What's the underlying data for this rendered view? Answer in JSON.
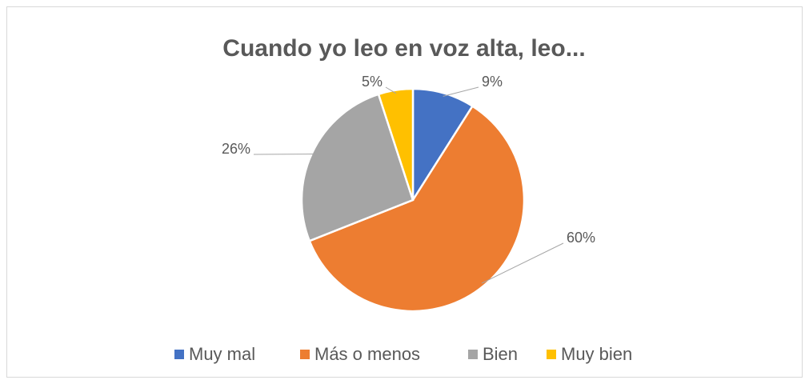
{
  "chart_data": {
    "type": "pie",
    "title": "Cuando yo leo en voz alta, leo...",
    "categories": [
      "Muy mal",
      "Más o menos",
      "Bien",
      "Muy bien"
    ],
    "values": [
      9,
      60,
      26,
      5
    ],
    "value_labels": [
      "9%",
      "60%",
      "26%",
      "5%"
    ],
    "colors": [
      "#4472c4",
      "#ed7d31",
      "#a5a5a5",
      "#ffc000"
    ],
    "legend": "bottom"
  }
}
